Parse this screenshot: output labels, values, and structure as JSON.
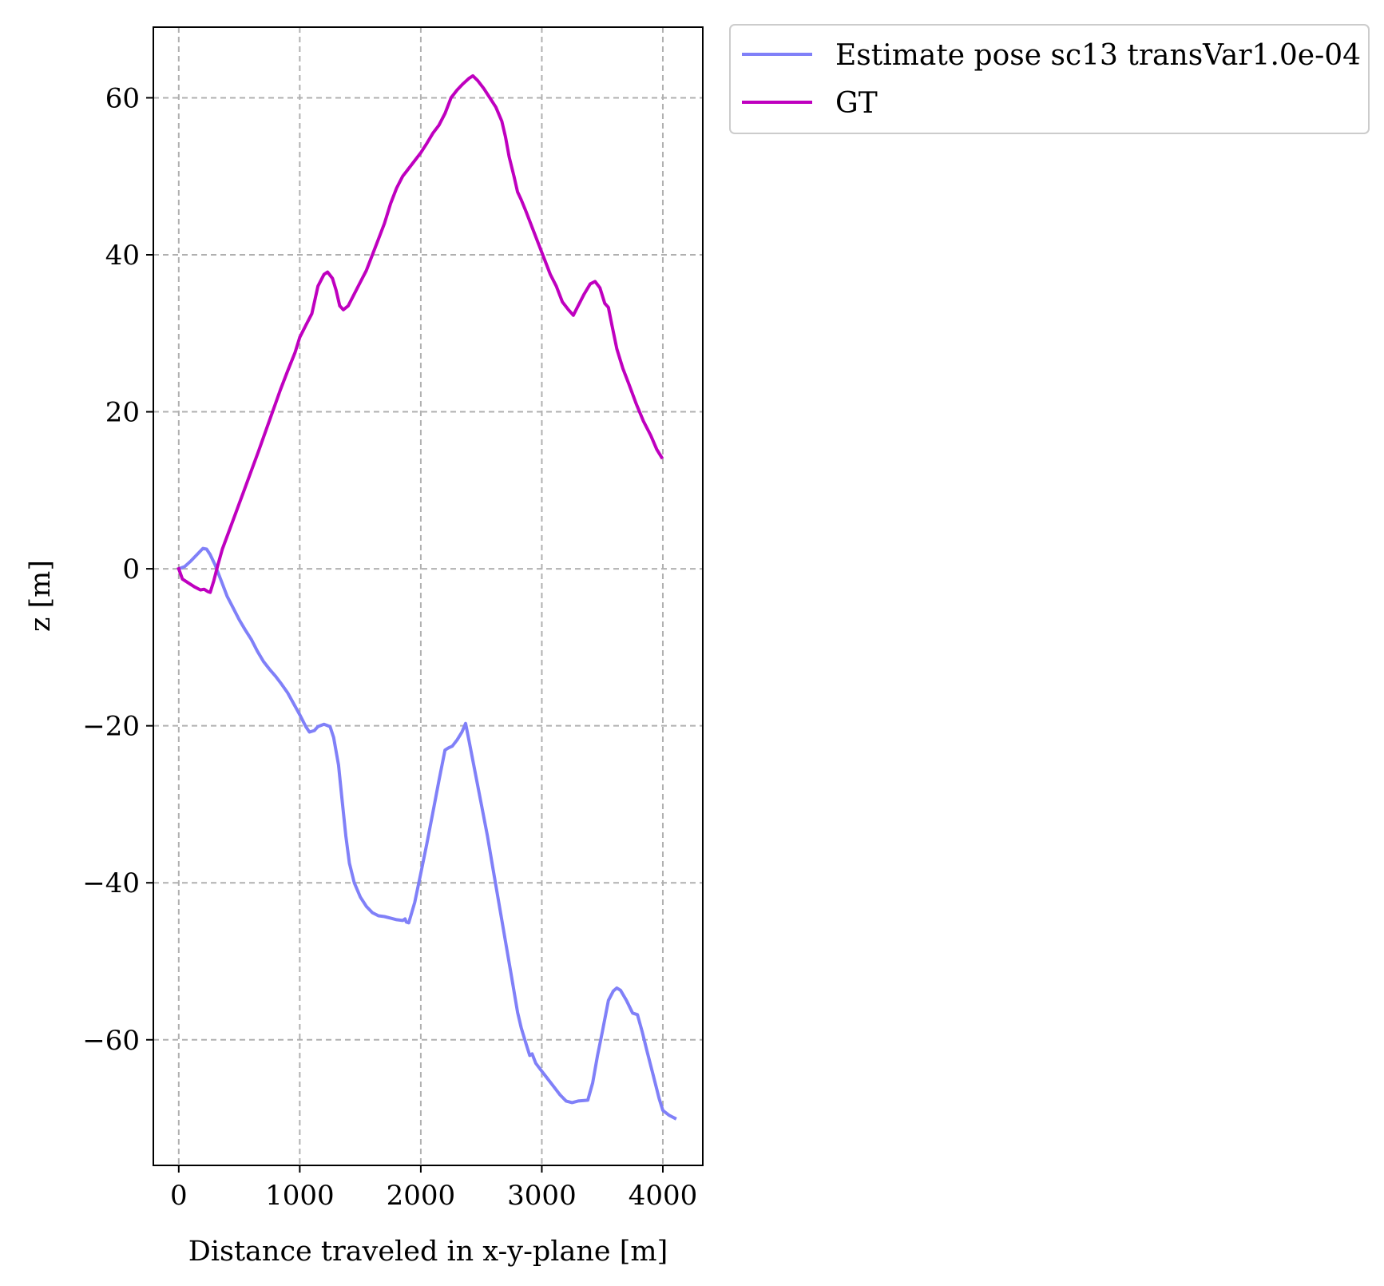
{
  "chart_data": {
    "type": "line",
    "title": "",
    "xlabel": "Distance traveled in x-y-plane [m]",
    "ylabel": "z [m]",
    "xlim": [
      -210,
      4330
    ],
    "ylim": [
      -76,
      69
    ],
    "xticks": [
      0,
      1000,
      2000,
      3000,
      4000
    ],
    "xtick_labels": [
      "0",
      "1000",
      "2000",
      "3000",
      "4000"
    ],
    "yticks": [
      -60,
      -40,
      -20,
      0,
      20,
      40,
      60
    ],
    "ytick_labels": [
      "−60",
      "−40",
      "−20",
      "0",
      "20",
      "40",
      "60"
    ],
    "grid": true,
    "legend_position": "outside-upper-right",
    "series": [
      {
        "name": "Estimate pose sc13 transVar1.0e-04",
        "color": "#8080f8",
        "points": [
          [
            0,
            0
          ],
          [
            50,
            0.3
          ],
          [
            100,
            1.0
          ],
          [
            150,
            1.8
          ],
          [
            200,
            2.6
          ],
          [
            230,
            2.5
          ],
          [
            260,
            1.8
          ],
          [
            300,
            0.5
          ],
          [
            350,
            -1.5
          ],
          [
            400,
            -3.5
          ],
          [
            450,
            -5.0
          ],
          [
            500,
            -6.5
          ],
          [
            550,
            -7.8
          ],
          [
            600,
            -9.0
          ],
          [
            650,
            -10.5
          ],
          [
            700,
            -11.8
          ],
          [
            750,
            -12.8
          ],
          [
            800,
            -13.7
          ],
          [
            850,
            -14.7
          ],
          [
            900,
            -15.8
          ],
          [
            950,
            -17.2
          ],
          [
            1000,
            -18.6
          ],
          [
            1050,
            -20.1
          ],
          [
            1080,
            -20.8
          ],
          [
            1120,
            -20.6
          ],
          [
            1150,
            -20.1
          ],
          [
            1200,
            -19.8
          ],
          [
            1250,
            -20.1
          ],
          [
            1280,
            -21.5
          ],
          [
            1320,
            -25.0
          ],
          [
            1350,
            -29.5
          ],
          [
            1380,
            -34.0
          ],
          [
            1410,
            -37.5
          ],
          [
            1450,
            -40.0
          ],
          [
            1500,
            -41.8
          ],
          [
            1550,
            -43.0
          ],
          [
            1600,
            -43.8
          ],
          [
            1650,
            -44.2
          ],
          [
            1700,
            -44.3
          ],
          [
            1750,
            -44.5
          ],
          [
            1800,
            -44.7
          ],
          [
            1850,
            -44.8
          ],
          [
            1870,
            -44.6
          ],
          [
            1880,
            -45.0
          ],
          [
            1900,
            -45.1
          ],
          [
            1950,
            -42.5
          ],
          [
            2000,
            -38.8
          ],
          [
            2050,
            -35.0
          ],
          [
            2100,
            -31.0
          ],
          [
            2150,
            -27.0
          ],
          [
            2200,
            -23.1
          ],
          [
            2230,
            -22.8
          ],
          [
            2260,
            -22.6
          ],
          [
            2300,
            -21.8
          ],
          [
            2340,
            -20.8
          ],
          [
            2370,
            -19.7
          ],
          [
            2400,
            -22.0
          ],
          [
            2450,
            -26.0
          ],
          [
            2500,
            -30.0
          ],
          [
            2550,
            -34.0
          ],
          [
            2600,
            -38.5
          ],
          [
            2650,
            -43.0
          ],
          [
            2700,
            -47.5
          ],
          [
            2750,
            -52.0
          ],
          [
            2800,
            -56.5
          ],
          [
            2830,
            -58.5
          ],
          [
            2870,
            -60.5
          ],
          [
            2900,
            -62.0
          ],
          [
            2920,
            -61.8
          ],
          [
            2950,
            -63.0
          ],
          [
            3000,
            -64.0
          ],
          [
            3050,
            -65.0
          ],
          [
            3100,
            -66.0
          ],
          [
            3150,
            -67.0
          ],
          [
            3200,
            -67.8
          ],
          [
            3250,
            -68.0
          ],
          [
            3300,
            -67.8
          ],
          [
            3380,
            -67.7
          ],
          [
            3420,
            -65.5
          ],
          [
            3460,
            -62.0
          ],
          [
            3500,
            -59.0
          ],
          [
            3550,
            -55.0
          ],
          [
            3590,
            -53.8
          ],
          [
            3620,
            -53.4
          ],
          [
            3650,
            -53.7
          ],
          [
            3700,
            -55.0
          ],
          [
            3750,
            -56.6
          ],
          [
            3790,
            -56.8
          ],
          [
            3830,
            -59.0
          ],
          [
            3870,
            -61.5
          ],
          [
            3920,
            -64.5
          ],
          [
            3970,
            -67.5
          ],
          [
            4000,
            -69.0
          ],
          [
            4050,
            -69.6
          ],
          [
            4100,
            -70.0
          ]
        ]
      },
      {
        "name": "GT",
        "color": "#bf00bf",
        "points": [
          [
            0,
            0
          ],
          [
            30,
            -1.3
          ],
          [
            80,
            -1.8
          ],
          [
            130,
            -2.3
          ],
          [
            180,
            -2.7
          ],
          [
            210,
            -2.6
          ],
          [
            240,
            -2.9
          ],
          [
            260,
            -3.0
          ],
          [
            290,
            -1.5
          ],
          [
            320,
            0.3
          ],
          [
            360,
            2.5
          ],
          [
            420,
            5.0
          ],
          [
            480,
            7.5
          ],
          [
            540,
            10.0
          ],
          [
            600,
            12.5
          ],
          [
            660,
            15.0
          ],
          [
            720,
            17.6
          ],
          [
            780,
            20.2
          ],
          [
            840,
            22.8
          ],
          [
            900,
            25.2
          ],
          [
            960,
            27.5
          ],
          [
            1000,
            29.5
          ],
          [
            1050,
            31.0
          ],
          [
            1100,
            32.5
          ],
          [
            1150,
            36.0
          ],
          [
            1200,
            37.5
          ],
          [
            1230,
            37.8
          ],
          [
            1270,
            37.0
          ],
          [
            1300,
            35.5
          ],
          [
            1330,
            33.5
          ],
          [
            1360,
            33.0
          ],
          [
            1400,
            33.5
          ],
          [
            1450,
            35.0
          ],
          [
            1500,
            36.5
          ],
          [
            1550,
            38.0
          ],
          [
            1600,
            40.0
          ],
          [
            1650,
            42.0
          ],
          [
            1700,
            44.0
          ],
          [
            1750,
            46.5
          ],
          [
            1800,
            48.5
          ],
          [
            1850,
            50.0
          ],
          [
            1900,
            51.0
          ],
          [
            1950,
            52.0
          ],
          [
            2000,
            53.0
          ],
          [
            2050,
            54.2
          ],
          [
            2100,
            55.5
          ],
          [
            2150,
            56.5
          ],
          [
            2200,
            58.0
          ],
          [
            2250,
            60.0
          ],
          [
            2300,
            61.0
          ],
          [
            2350,
            61.8
          ],
          [
            2400,
            62.5
          ],
          [
            2430,
            62.8
          ],
          [
            2470,
            62.2
          ],
          [
            2520,
            61.2
          ],
          [
            2570,
            60.0
          ],
          [
            2620,
            58.8
          ],
          [
            2670,
            57.0
          ],
          [
            2700,
            55.0
          ],
          [
            2730,
            52.5
          ],
          [
            2770,
            50.0
          ],
          [
            2800,
            48.0
          ],
          [
            2830,
            47.0
          ],
          [
            2870,
            45.5
          ],
          [
            2920,
            43.5
          ],
          [
            2970,
            41.5
          ],
          [
            3020,
            39.5
          ],
          [
            3070,
            37.5
          ],
          [
            3120,
            36.0
          ],
          [
            3170,
            34.0
          ],
          [
            3220,
            33.0
          ],
          [
            3260,
            32.3
          ],
          [
            3300,
            33.5
          ],
          [
            3350,
            35.0
          ],
          [
            3400,
            36.3
          ],
          [
            3440,
            36.6
          ],
          [
            3480,
            35.8
          ],
          [
            3520,
            33.8
          ],
          [
            3550,
            33.3
          ],
          [
            3580,
            31.0
          ],
          [
            3620,
            28.0
          ],
          [
            3670,
            25.5
          ],
          [
            3720,
            23.5
          ],
          [
            3780,
            21.0
          ],
          [
            3840,
            18.8
          ],
          [
            3900,
            17.0
          ],
          [
            3950,
            15.2
          ],
          [
            3990,
            14.2
          ]
        ]
      }
    ]
  }
}
